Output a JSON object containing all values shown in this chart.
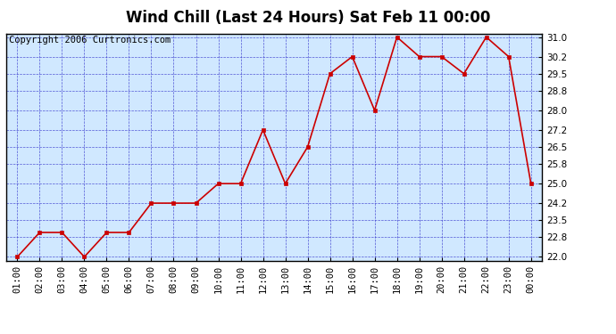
{
  "title": "Wind Chill (Last 24 Hours) Sat Feb 11 00:00",
  "copyright": "Copyright 2006 Curtronics.com",
  "x_labels": [
    "01:00",
    "02:00",
    "03:00",
    "04:00",
    "05:00",
    "06:00",
    "07:00",
    "08:00",
    "09:00",
    "10:00",
    "11:00",
    "12:00",
    "13:00",
    "14:00",
    "15:00",
    "16:00",
    "17:00",
    "18:00",
    "19:00",
    "20:00",
    "21:00",
    "22:00",
    "23:00",
    "00:00"
  ],
  "y_values": [
    22.0,
    23.0,
    23.0,
    22.0,
    23.0,
    23.0,
    24.2,
    24.2,
    24.2,
    25.0,
    25.0,
    27.2,
    25.0,
    26.5,
    29.5,
    30.2,
    28.0,
    31.0,
    30.2,
    30.2,
    29.5,
    31.0,
    30.2,
    25.0
  ],
  "y_ticks": [
    22.0,
    22.8,
    23.5,
    24.2,
    25.0,
    25.8,
    26.5,
    27.2,
    28.0,
    28.8,
    29.5,
    30.2,
    31.0
  ],
  "ylim": [
    21.85,
    31.15
  ],
  "line_color": "#cc0000",
  "marker_color": "#cc0000",
  "bg_color": "#d0e8ff",
  "grid_color": "#3333cc",
  "border_color": "#000000",
  "outer_bg": "#ffffff",
  "title_fontsize": 12,
  "copyright_fontsize": 7.5,
  "tick_fontsize": 7.5,
  "ytick_fontsize": 7.5
}
